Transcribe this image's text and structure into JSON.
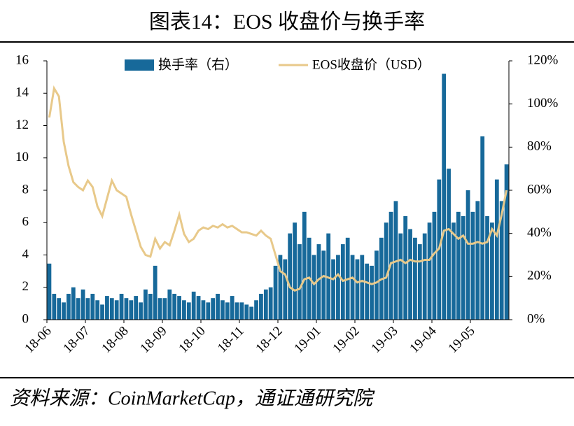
{
  "chart_data": {
    "type": "combo",
    "title": "图表14：EOS 收盘价与换手率",
    "source": "资料来源：CoinMarketCap，通证通研究院",
    "categories": [
      "18-06",
      null,
      null,
      null,
      null,
      null,
      null,
      null,
      "18-07",
      null,
      null,
      null,
      null,
      null,
      null,
      null,
      "18-08",
      null,
      null,
      null,
      null,
      null,
      null,
      null,
      "18-09",
      null,
      null,
      null,
      null,
      null,
      null,
      null,
      "18-10",
      null,
      null,
      null,
      null,
      null,
      null,
      null,
      "18-11",
      null,
      null,
      null,
      null,
      null,
      null,
      null,
      "18-12",
      null,
      null,
      null,
      null,
      null,
      null,
      null,
      "19-01",
      null,
      null,
      null,
      null,
      null,
      null,
      null,
      "19-02",
      null,
      null,
      null,
      null,
      null,
      null,
      null,
      "19-03",
      null,
      null,
      null,
      null,
      null,
      null,
      null,
      "19-04",
      null,
      null,
      null,
      null,
      null,
      null,
      null,
      "19-05",
      null,
      null,
      null,
      null,
      null,
      null,
      null
    ],
    "series": [
      {
        "name": "换手率（右）",
        "type": "bar",
        "axis": "y2",
        "color": "#17699a",
        "values": [
          26,
          12,
          10,
          8,
          12,
          15,
          10,
          14,
          10,
          12,
          9,
          7,
          11,
          10,
          9,
          12,
          10,
          9,
          11,
          8,
          14,
          12,
          25,
          10,
          10,
          14,
          12,
          11,
          9,
          8,
          13,
          11,
          9,
          8,
          10,
          12,
          9,
          8,
          11,
          8,
          8,
          7,
          6,
          9,
          12,
          14,
          15,
          25,
          30,
          28,
          40,
          45,
          35,
          50,
          38,
          30,
          35,
          32,
          40,
          28,
          30,
          35,
          38,
          30,
          28,
          30,
          26,
          25,
          32,
          38,
          45,
          50,
          55,
          40,
          48,
          42,
          38,
          35,
          40,
          45,
          50,
          65,
          114,
          70,
          45,
          50,
          48,
          60,
          50,
          55,
          85,
          48,
          45,
          65,
          55,
          72
        ]
      },
      {
        "name": "EOS收盘价（USD）",
        "type": "line",
        "color": "#e8c98a",
        "values": [
          12.5,
          14.3,
          13.8,
          11,
          9.5,
          8.5,
          8.2,
          8.0,
          8.6,
          8.2,
          7.0,
          6.4,
          7.5,
          8.6,
          8.0,
          7.8,
          7.6,
          6.5,
          5.5,
          4.5,
          4.0,
          3.9,
          5.0,
          4.4,
          4.8,
          4.6,
          5.5,
          6.5,
          5.3,
          4.8,
          5.0,
          5.5,
          5.7,
          5.6,
          5.8,
          5.7,
          5.9,
          5.7,
          5.8,
          5.6,
          5.4,
          5.4,
          5.3,
          5.2,
          5.5,
          5.2,
          5.0,
          4.0,
          3.0,
          2.8,
          2.0,
          1.8,
          1.9,
          2.5,
          2.6,
          2.2,
          2.5,
          2.7,
          2.6,
          2.5,
          2.8,
          2.4,
          2.5,
          2.6,
          2.3,
          2.4,
          2.3,
          2.2,
          2.3,
          2.5,
          2.6,
          3.5,
          3.6,
          3.7,
          3.5,
          3.7,
          3.6,
          3.6,
          3.7,
          3.7,
          4.1,
          4.4,
          5.5,
          5.6,
          5.3,
          5.0,
          5.2,
          4.7,
          4.7,
          4.8,
          4.7,
          4.8,
          5.6,
          5.2,
          6.5,
          8.0
        ]
      }
    ],
    "ylim": [
      0,
      16
    ],
    "yticks": [
      0,
      2,
      4,
      6,
      8,
      10,
      12,
      14,
      16
    ],
    "y2lim": [
      0,
      120
    ],
    "y2ticks": [
      {
        "value": 0,
        "label": "0%"
      },
      {
        "value": 20,
        "label": "20%"
      },
      {
        "value": 40,
        "label": "40%"
      },
      {
        "value": 60,
        "label": "60%"
      },
      {
        "value": 80,
        "label": "80%"
      },
      {
        "value": 100,
        "label": "100%"
      },
      {
        "value": 120,
        "label": "120%"
      }
    ]
  }
}
